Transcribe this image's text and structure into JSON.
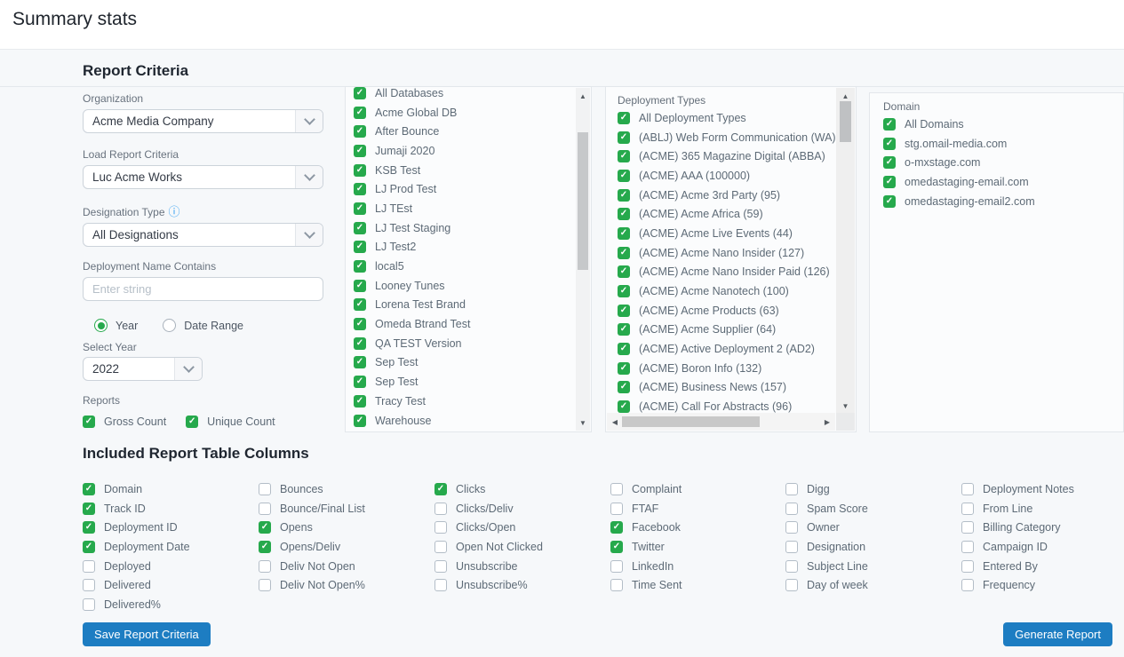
{
  "page": {
    "title": "Summary stats"
  },
  "icons": {
    "check": "✓",
    "info": "ⓘ",
    "scroll_up": "▲",
    "scroll_down": "▼",
    "scroll_left": "◀",
    "scroll_right": "▶"
  },
  "colors": {
    "green": "#26a94c",
    "blue": "#1d7dc2",
    "info_blue": "#2d9cf0"
  },
  "report_criteria": {
    "heading": "Report Criteria",
    "organization": {
      "label": "Organization",
      "value": "Acme Media Company"
    },
    "load_report_criteria": {
      "label": "Load Report Criteria",
      "value": "Luc Acme Works"
    },
    "designation_type": {
      "label": "Designation Type",
      "value": "All Designations"
    },
    "deployment_name_contains": {
      "label": "Deployment Name Contains",
      "placeholder": "Enter string"
    },
    "date_mode_options": [
      {
        "label": "Year",
        "selected": true
      },
      {
        "label": "Date Range",
        "selected": false
      }
    ],
    "select_year": {
      "label": "Select Year",
      "value": "2022"
    },
    "reports": {
      "label": "Reports",
      "options": [
        {
          "label": "Gross Count",
          "checked": true
        },
        {
          "label": "Unique Count",
          "checked": true
        }
      ]
    }
  },
  "databases": {
    "items": [
      {
        "label": "All Databases",
        "checked": true
      },
      {
        "label": "Acme Global DB",
        "checked": true
      },
      {
        "label": "After Bounce",
        "checked": true
      },
      {
        "label": "Jumaji 2020",
        "checked": true
      },
      {
        "label": "KSB Test",
        "checked": true
      },
      {
        "label": "LJ Prod Test",
        "checked": true
      },
      {
        "label": "LJ TEst",
        "checked": true
      },
      {
        "label": "LJ Test Staging",
        "checked": true
      },
      {
        "label": "LJ Test2",
        "checked": true
      },
      {
        "label": "local5",
        "checked": true
      },
      {
        "label": "Looney Tunes",
        "checked": true
      },
      {
        "label": "Lorena Test Brand",
        "checked": true
      },
      {
        "label": "Omeda Btrand Test",
        "checked": true
      },
      {
        "label": "QA TEST Version",
        "checked": true
      },
      {
        "label": "Sep Test",
        "checked": true
      },
      {
        "label": "Sep Test",
        "checked": true
      },
      {
        "label": "Tracy Test",
        "checked": true
      },
      {
        "label": "Warehouse",
        "checked": true
      }
    ]
  },
  "deployment_types": {
    "label": "Deployment Types",
    "items": [
      {
        "label": "All Deployment Types",
        "checked": true
      },
      {
        "label": "(ABLJ) Web Form Communication (WA)",
        "checked": true
      },
      {
        "label": "(ACME) 365 Magazine Digital (ABBA)",
        "checked": true
      },
      {
        "label": "(ACME) AAA (100000)",
        "checked": true
      },
      {
        "label": "(ACME) Acme 3rd Party (95)",
        "checked": true
      },
      {
        "label": "(ACME) Acme Africa (59)",
        "checked": true
      },
      {
        "label": "(ACME) Acme Live Events (44)",
        "checked": true
      },
      {
        "label": "(ACME) Acme Nano Insider (127)",
        "checked": true
      },
      {
        "label": "(ACME) Acme Nano Insider Paid (126)",
        "checked": true
      },
      {
        "label": "(ACME) Acme Nanotech (100)",
        "checked": true
      },
      {
        "label": "(ACME) Acme Products (63)",
        "checked": true
      },
      {
        "label": "(ACME) Acme Supplier (64)",
        "checked": true
      },
      {
        "label": "(ACME) Active Deployment 2 (AD2)",
        "checked": true
      },
      {
        "label": "(ACME) Boron Info (132)",
        "checked": true
      },
      {
        "label": "(ACME) Business News (157)",
        "checked": true
      },
      {
        "label": "(ACME) Call For Abstracts (96)",
        "checked": true
      }
    ]
  },
  "domains": {
    "label": "Domain",
    "items": [
      {
        "label": "All Domains",
        "checked": true
      },
      {
        "label": "stg.omail-media.com",
        "checked": true
      },
      {
        "label": "o-mxstage.com",
        "checked": true
      },
      {
        "label": "omedastaging-email.com",
        "checked": true
      },
      {
        "label": "omedastaging-email2.com",
        "checked": true
      }
    ]
  },
  "included_columns": {
    "heading": "Included Report Table Columns",
    "columns": [
      [
        {
          "label": "Domain",
          "checked": true
        },
        {
          "label": "Track ID",
          "checked": true
        },
        {
          "label": "Deployment ID",
          "checked": true
        },
        {
          "label": "Deployment Date",
          "checked": true
        },
        {
          "label": "Deployed",
          "checked": false
        },
        {
          "label": "Delivered",
          "checked": false
        },
        {
          "label": "Delivered%",
          "checked": false
        }
      ],
      [
        {
          "label": "Bounces",
          "checked": false
        },
        {
          "label": "Bounce/Final List",
          "checked": false
        },
        {
          "label": "Opens",
          "checked": true
        },
        {
          "label": "Opens/Deliv",
          "checked": true
        },
        {
          "label": "Deliv Not Open",
          "checked": false
        },
        {
          "label": "Deliv Not Open%",
          "checked": false
        }
      ],
      [
        {
          "label": "Clicks",
          "checked": true
        },
        {
          "label": "Clicks/Deliv",
          "checked": false
        },
        {
          "label": "Clicks/Open",
          "checked": false
        },
        {
          "label": "Open Not Clicked",
          "checked": false
        },
        {
          "label": "Unsubscribe",
          "checked": false
        },
        {
          "label": "Unsubscribe%",
          "checked": false
        }
      ],
      [
        {
          "label": "Complaint",
          "checked": false
        },
        {
          "label": "FTAF",
          "checked": false
        },
        {
          "label": "Facebook",
          "checked": true
        },
        {
          "label": "Twitter",
          "checked": true
        },
        {
          "label": "LinkedIn",
          "checked": false
        },
        {
          "label": "Time Sent",
          "checked": false
        }
      ],
      [
        {
          "label": "Digg",
          "checked": false
        },
        {
          "label": "Spam Score",
          "checked": false
        },
        {
          "label": "Owner",
          "checked": false
        },
        {
          "label": "Designation",
          "checked": false
        },
        {
          "label": "Subject Line",
          "checked": false
        },
        {
          "label": "Day of week",
          "checked": false
        }
      ],
      [
        {
          "label": "Deployment Notes",
          "checked": false
        },
        {
          "label": "From Line",
          "checked": false
        },
        {
          "label": "Billing Category",
          "checked": false
        },
        {
          "label": "Campaign ID",
          "checked": false
        },
        {
          "label": "Entered By",
          "checked": false
        },
        {
          "label": "Frequency",
          "checked": false
        }
      ]
    ]
  },
  "actions": {
    "save_label": "Save Report Criteria",
    "generate_label": "Generate Report"
  }
}
